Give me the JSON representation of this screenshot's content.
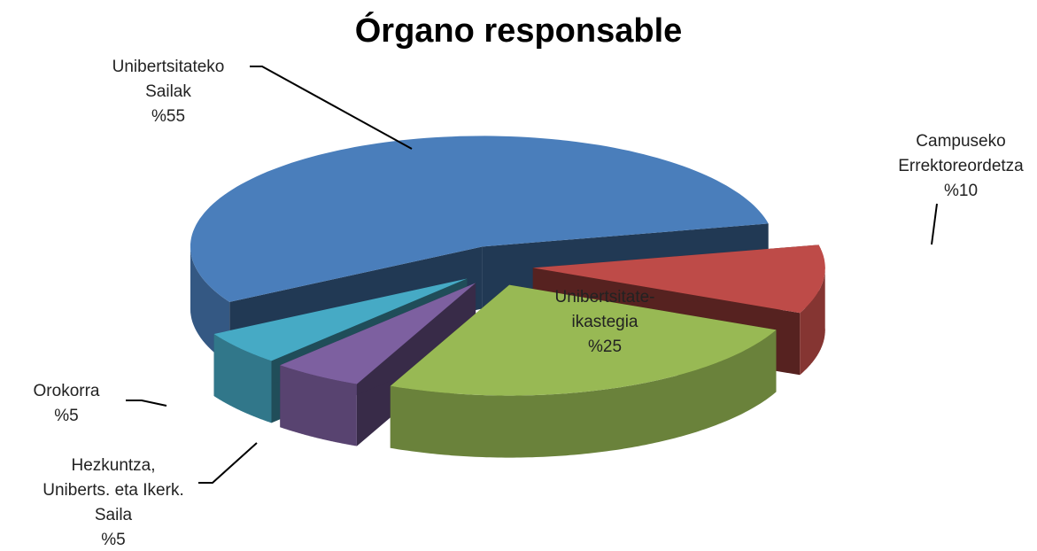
{
  "chart_data": {
    "type": "pie",
    "title": "Órgano responsable",
    "categories": [
      "Campuseko\nErrektoreordetza",
      "Unibertsitate-\nikastegia",
      "Hezkuntza,\nUniberts. eta Ikerk.\nSaila",
      "Orokorra",
      "Unibertsitateko\nSailak"
    ],
    "values": [
      10,
      25,
      5,
      5,
      55
    ],
    "value_labels": [
      "%10",
      "%25",
      "%5",
      "%5",
      "%55"
    ],
    "colors": [
      "#be4b48",
      "#98b954",
      "#7d60a0",
      "#46aac5",
      "#4a7ebb"
    ]
  }
}
